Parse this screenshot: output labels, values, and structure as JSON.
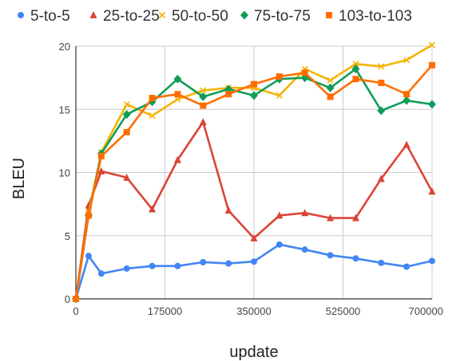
{
  "chart_data": {
    "type": "line",
    "title": "",
    "xlabel": "update",
    "ylabel": "BLEU",
    "xlim": [
      0,
      700000
    ],
    "ylim": [
      0,
      20
    ],
    "grid": true,
    "legend_position": "top",
    "x_ticks": [
      {
        "value": 0,
        "label": "0"
      },
      {
        "value": 175000,
        "label": "175000"
      },
      {
        "value": 350000,
        "label": "350000"
      },
      {
        "value": 525000,
        "label": "525000"
      },
      {
        "value": 700000,
        "label": "700000"
      }
    ],
    "y_ticks": [
      {
        "value": 0,
        "label": "0"
      },
      {
        "value": 5,
        "label": "5"
      },
      {
        "value": 10,
        "label": "10"
      },
      {
        "value": 15,
        "label": "15"
      },
      {
        "value": 20,
        "label": "20"
      }
    ],
    "x": [
      0,
      25000,
      50000,
      100000,
      150000,
      200000,
      250000,
      300000,
      350000,
      400000,
      450000,
      500000,
      550000,
      600000,
      650000,
      700000
    ],
    "series": [
      {
        "name": "5-to-5",
        "color": "#4285f4",
        "marker": "circle",
        "values": [
          0,
          3.4,
          2.0,
          2.4,
          2.6,
          2.6,
          2.9,
          2.8,
          2.95,
          4.3,
          3.9,
          3.45,
          3.2,
          2.85,
          2.55,
          3.0
        ]
      },
      {
        "name": "25-to-25",
        "color": "#db4437",
        "marker": "triangle",
        "values": [
          0,
          7.4,
          10.1,
          9.6,
          7.1,
          11.0,
          14.0,
          7.0,
          4.8,
          6.6,
          6.8,
          6.4,
          6.4,
          9.5,
          12.2,
          8.5
        ]
      },
      {
        "name": "50-to-50",
        "color": "#f4b400",
        "marker": "x",
        "values": [
          0,
          6.8,
          11.6,
          15.4,
          14.5,
          15.8,
          16.5,
          16.7,
          16.7,
          16.1,
          18.2,
          17.3,
          18.6,
          18.4,
          18.9,
          20.1
        ]
      },
      {
        "name": "75-to-75",
        "color": "#0f9d58",
        "marker": "diamond",
        "values": [
          0,
          6.6,
          11.5,
          14.6,
          15.6,
          17.4,
          16.0,
          16.6,
          16.1,
          17.4,
          17.5,
          16.7,
          18.2,
          14.9,
          15.7,
          15.4
        ]
      },
      {
        "name": "103-to-103",
        "color": "#ff6d00",
        "marker": "square",
        "values": [
          0,
          6.6,
          11.3,
          13.2,
          15.9,
          16.2,
          15.3,
          16.2,
          17.0,
          17.6,
          17.9,
          16.0,
          17.4,
          17.1,
          16.2,
          18.5
        ]
      }
    ]
  }
}
